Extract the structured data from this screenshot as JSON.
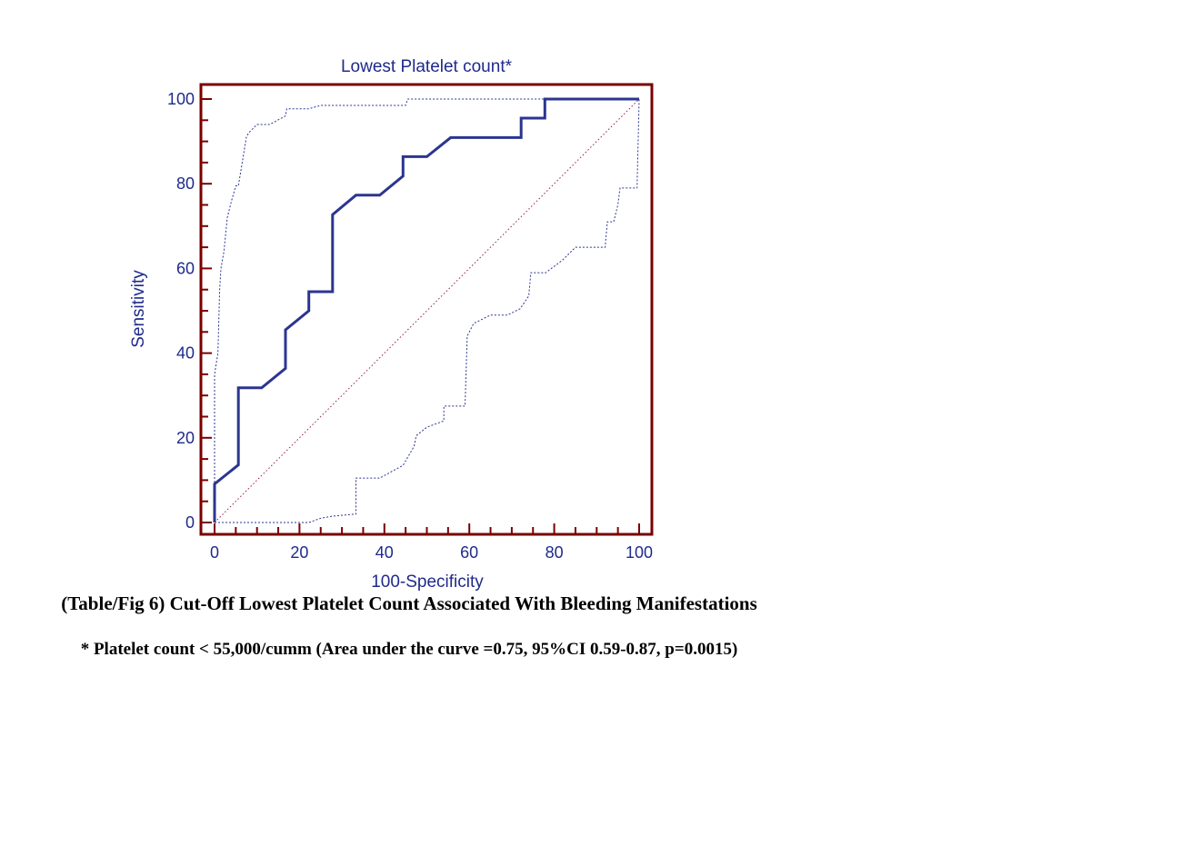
{
  "chart_data": {
    "type": "line",
    "title": "Lowest Platelet count*",
    "xlabel": "100-Specificity",
    "ylabel": "Sensitivity",
    "xlim": [
      0,
      100
    ],
    "ylim": [
      0,
      100
    ],
    "xticks": [
      0,
      20,
      40,
      60,
      80,
      100
    ],
    "yticks": [
      0,
      20,
      40,
      60,
      80,
      100
    ],
    "grid": false,
    "colors": {
      "frame": "#7a0000",
      "text": "#1f2a8c",
      "roc": "#2b3590",
      "ci": "#2b3590",
      "diagonal": "#9a2040"
    },
    "series": [
      {
        "style": "solid",
        "x": [
          0,
          0,
          5.6,
          5.6,
          11.1,
          16.7,
          16.7,
          22.2,
          22.2,
          27.8,
          27.8,
          33.3,
          38.9,
          44.4,
          44.4,
          50.0,
          55.6,
          61.1,
          66.7,
          72.2,
          72.2,
          77.8,
          77.8,
          83.3,
          100
        ],
        "y": [
          0,
          9.1,
          13.6,
          31.8,
          31.8,
          36.4,
          45.5,
          50.0,
          54.5,
          54.5,
          72.7,
          77.3,
          77.3,
          81.8,
          86.4,
          86.4,
          90.9,
          90.9,
          90.9,
          90.9,
          95.5,
          95.5,
          100,
          100,
          100
        ]
      },
      {
        "style": "dotted",
        "x": [
          0,
          0,
          0.8,
          1.2,
          1.5,
          2.2,
          3.0,
          4.0,
          5.0,
          5.6,
          7.5,
          8.0,
          10.0,
          11.1,
          13.0,
          16.7,
          17.0,
          22.2,
          25.0,
          27.8,
          35.0,
          45.0,
          45.5,
          60.0,
          77.8
        ],
        "y": [
          0,
          35,
          40,
          55,
          60,
          64,
          72,
          76,
          79.5,
          79.5,
          91,
          92,
          94,
          94,
          94,
          96,
          97.7,
          97.7,
          98.5,
          98.5,
          98.5,
          98.5,
          100,
          100,
          100
        ]
      },
      {
        "style": "dotted",
        "x": [
          0,
          22.2,
          25.0,
          27.8,
          33.3,
          33.3,
          38.9,
          44.4,
          47.0,
          47.5,
          50.0,
          54.0,
          54.0,
          59.0,
          59.5,
          61.0,
          65.0,
          69.0,
          72.0,
          74.0,
          74.5,
          78.0,
          82.0,
          85.0,
          92.0,
          92.5,
          94.0,
          95.0,
          95.5,
          99.5,
          100
        ],
        "y": [
          0,
          0,
          1.0,
          1.5,
          2.0,
          10.5,
          10.5,
          13.5,
          18.0,
          20.5,
          22.5,
          24.0,
          27.5,
          27.5,
          44.0,
          47.0,
          49.0,
          49.0,
          50.5,
          53.5,
          59.0,
          59.0,
          62.0,
          65.0,
          65.0,
          71.0,
          71.0,
          75.0,
          79.0,
          79.0,
          100
        ]
      },
      {
        "style": "dotted-diagonal",
        "x": [
          0,
          100
        ],
        "y": [
          0,
          100
        ]
      }
    ]
  },
  "captions": {
    "line1": "(Table/Fig 6) Cut-Off Lowest Platelet Count Associated With Bleeding Manifestations",
    "line2": "* Platelet count < 55,000/cumm (Area under the curve =0.75, 95%CI 0.59-0.87, p=0.0015)"
  }
}
